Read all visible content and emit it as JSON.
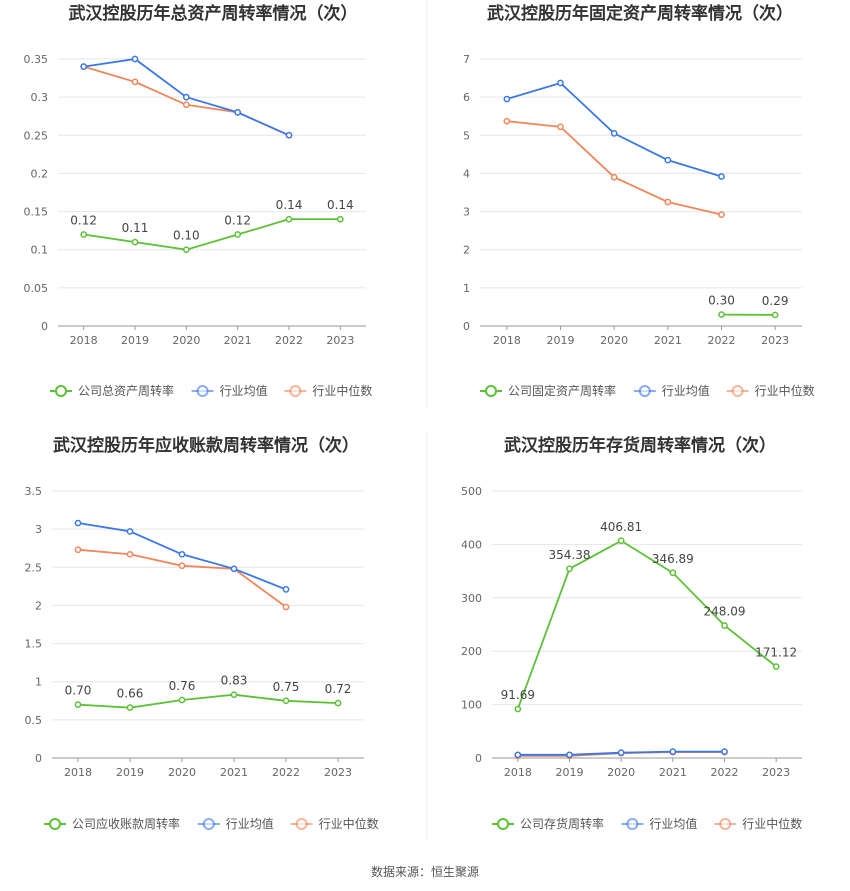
{
  "source_label": "数据来源：恒生聚源",
  "legend": {
    "industry_avg": "行业均值",
    "industry_median": "行业中位数"
  },
  "colors": {
    "company": "#5dc138",
    "industry_avg": "#3b78e7",
    "industry_median": "#f0875a",
    "grid": "#e6e6e6",
    "axis": "#999999"
  },
  "chart_data": [
    {
      "type": "line",
      "title": "武汉控股历年总资产周转率情况（次）",
      "categories": [
        "2018",
        "2019",
        "2020",
        "2021",
        "2022",
        "2023"
      ],
      "ylim": [
        0,
        0.35
      ],
      "yticks": [
        "0",
        "0.05",
        "0.1",
        "0.15",
        "0.2",
        "0.25",
        "0.3",
        "0.35"
      ],
      "series": [
        {
          "name": "公司总资产周转率",
          "key": "company",
          "values": [
            0.12,
            0.11,
            0.1,
            0.12,
            0.14,
            0.14
          ],
          "labels": [
            "0.12",
            "0.11",
            "0.10",
            "0.12",
            "0.14",
            "0.14"
          ]
        },
        {
          "name": "行业均值",
          "key": "industry_avg",
          "values": [
            0.34,
            0.35,
            0.3,
            0.28,
            0.25,
            null
          ]
        },
        {
          "name": "行业中位数",
          "key": "industry_median",
          "values": [
            0.34,
            0.32,
            0.29,
            0.28,
            0.25,
            null
          ]
        }
      ]
    },
    {
      "type": "line",
      "title": "武汉控股历年固定资产周转率情况（次）",
      "categories": [
        "2018",
        "2019",
        "2020",
        "2021",
        "2022",
        "2023"
      ],
      "ylim": [
        0,
        7
      ],
      "yticks": [
        "0",
        "1",
        "2",
        "3",
        "4",
        "5",
        "6",
        "7"
      ],
      "series": [
        {
          "name": "公司固定资产周转率",
          "key": "company",
          "values": [
            null,
            null,
            null,
            null,
            0.3,
            0.29
          ],
          "labels": [
            null,
            null,
            null,
            null,
            "0.30",
            "0.29"
          ]
        },
        {
          "name": "行业均值",
          "key": "industry_avg",
          "values": [
            5.95,
            6.37,
            5.05,
            4.35,
            3.92,
            null
          ]
        },
        {
          "name": "行业中位数",
          "key": "industry_median",
          "values": [
            5.37,
            5.22,
            3.9,
            3.25,
            2.92,
            null
          ]
        }
      ]
    },
    {
      "type": "line",
      "title": "武汉控股历年应收账款周转率情况（次）",
      "categories": [
        "2018",
        "2019",
        "2020",
        "2021",
        "2022",
        "2023"
      ],
      "ylim": [
        0,
        3.5
      ],
      "yticks": [
        "0",
        "0.5",
        "1",
        "1.5",
        "2",
        "2.5",
        "3",
        "3.5"
      ],
      "series": [
        {
          "name": "公司应收账款周转率",
          "key": "company",
          "values": [
            0.7,
            0.66,
            0.76,
            0.83,
            0.75,
            0.72
          ],
          "labels": [
            "0.70",
            "0.66",
            "0.76",
            "0.83",
            "0.75",
            "0.72"
          ]
        },
        {
          "name": "行业均值",
          "key": "industry_avg",
          "values": [
            3.08,
            2.97,
            2.67,
            2.48,
            2.21,
            null
          ]
        },
        {
          "name": "行业中位数",
          "key": "industry_median",
          "values": [
            2.73,
            2.67,
            2.52,
            2.48,
            1.98,
            null
          ]
        }
      ]
    },
    {
      "type": "line",
      "title": "武汉控股历年存货周转率情况（次）",
      "categories": [
        "2018",
        "2019",
        "2020",
        "2021",
        "2022",
        "2023"
      ],
      "ylim": [
        0,
        500
      ],
      "yticks": [
        "0",
        "100",
        "200",
        "300",
        "400",
        "500"
      ],
      "series": [
        {
          "name": "公司存货周转率",
          "key": "company",
          "values": [
            91.69,
            354.38,
            406.81,
            346.89,
            248.09,
            171.12
          ],
          "labels": [
            "91.69",
            "354.38",
            "406.81",
            "346.89",
            "248.09",
            "171.12"
          ]
        },
        {
          "name": "行业均值",
          "key": "industry_avg",
          "values": [
            6,
            6,
            10,
            12,
            12,
            null
          ]
        },
        {
          "name": "行业中位数",
          "key": "industry_median",
          "values": [
            4,
            4,
            9,
            11,
            11,
            null
          ]
        }
      ]
    }
  ]
}
